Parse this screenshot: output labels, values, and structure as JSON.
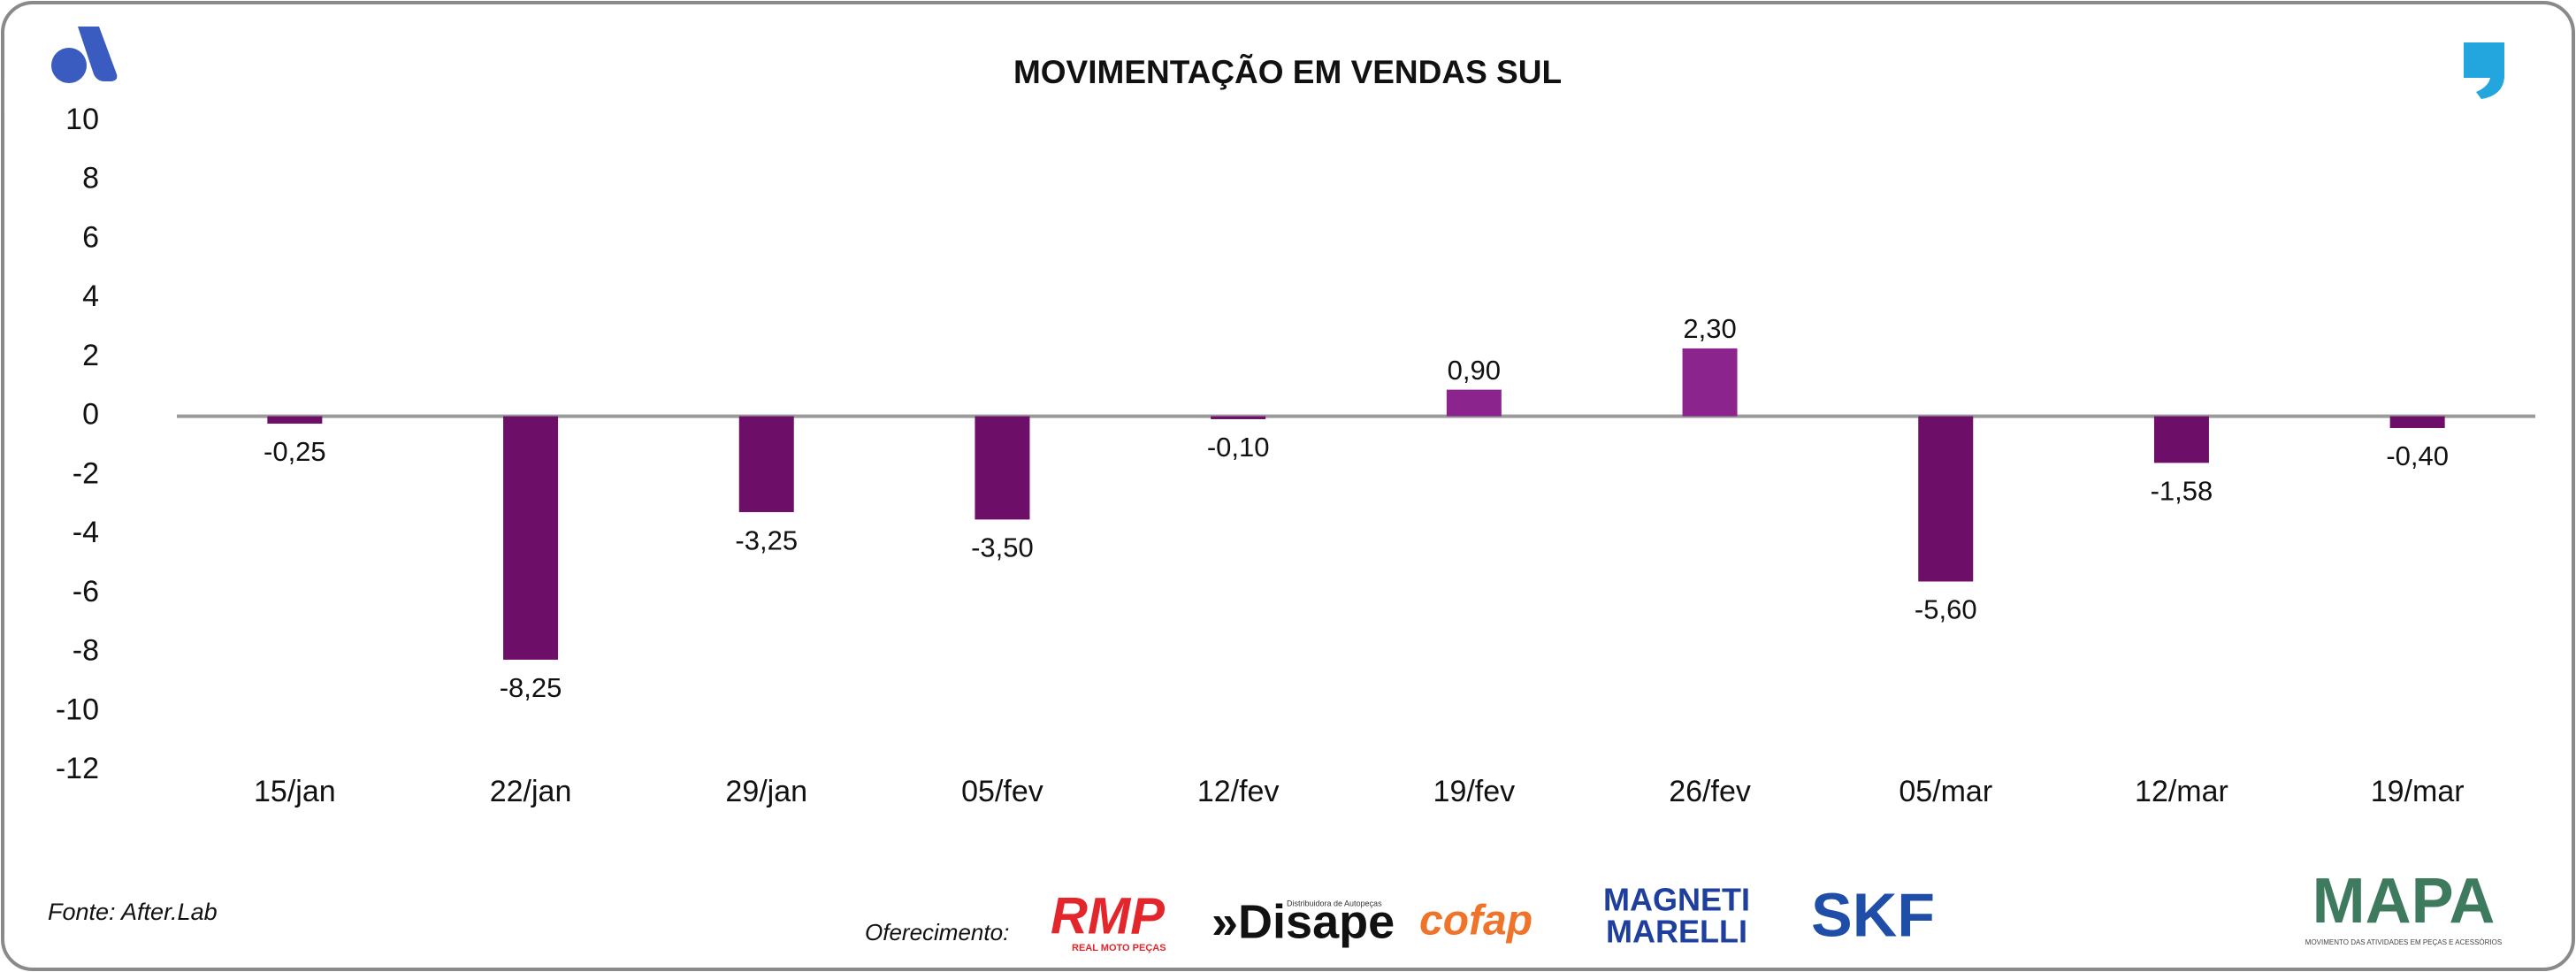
{
  "chart_data": {
    "type": "bar",
    "title": "MOVIMENTAÇÃO EM VENDAS SUL",
    "categories": [
      "15/jan",
      "22/jan",
      "29/jan",
      "05/fev",
      "12/fev",
      "19/fev",
      "26/fev",
      "05/mar",
      "12/mar",
      "19/mar"
    ],
    "values": [
      -0.25,
      -8.25,
      -3.25,
      -3.5,
      -0.1,
      0.9,
      2.3,
      -5.6,
      -1.58,
      -0.4
    ],
    "value_labels": [
      "-0,25",
      "-8,25",
      "-3,25",
      "-3,50",
      "-0,10",
      "0,90",
      "2,30",
      "-5,60",
      "-1,58",
      "-0,40"
    ],
    "color": "#6d0e68",
    "positive_color": "#8b248d",
    "ylim": [
      -12,
      10
    ],
    "yticks": [
      -12,
      -10,
      -8,
      -6,
      -4,
      -2,
      0,
      2,
      4,
      6,
      8,
      10
    ]
  },
  "footer": {
    "source": "Fonte: After.Lab",
    "sponsor_label": "Oferecimento:",
    "sponsors": [
      "RMP",
      "REAL MOTO PEÇAS",
      "»Disape",
      "Distribuidora de Autopeças",
      "cofap",
      "MAGNETI",
      "MARELLI",
      "SKF",
      "MAPA",
      "MOVIMENTO DAS ATIVIDADES EM PEÇAS E ACESSÓRIOS"
    ]
  }
}
